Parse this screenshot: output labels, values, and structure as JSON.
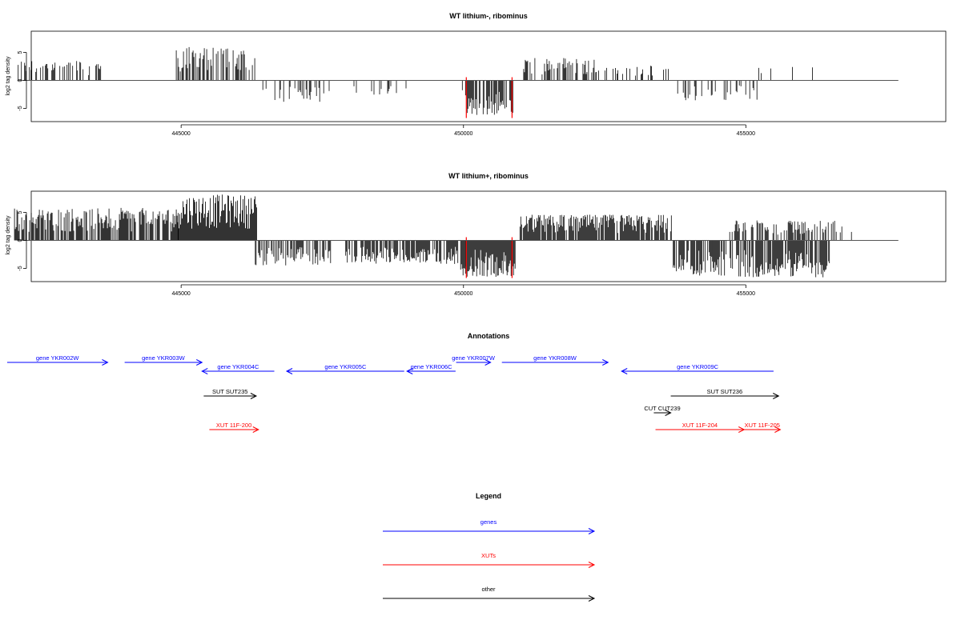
{
  "colors": {
    "genes": "#0000ff",
    "xuts": "#ff0000",
    "other": "#000000",
    "highlight": "#ff0000"
  },
  "chart_data": [
    {
      "type": "bar",
      "title": "WT lithium-, ribominus",
      "ylabel": "log2 tag density",
      "xlim": [
        442000,
        458000
      ],
      "ylim": [
        -7,
        8
      ],
      "x_ticks": [
        445000,
        450000,
        455000
      ],
      "x_tick_labels": [
        "445000",
        "450000",
        "455000"
      ],
      "y_ticks": [
        -5,
        0,
        5
      ],
      "y_tick_labels": [
        "-5",
        "0",
        "5"
      ],
      "highlight_x": [
        450050,
        450860
      ],
      "segments": [
        {
          "from": 442100,
          "to": 443600,
          "side": "up",
          "max": 3.6,
          "density": 0.4
        },
        {
          "from": 444900,
          "to": 446320,
          "side": "up",
          "max": 6.0,
          "density": 0.55
        },
        {
          "from": 446320,
          "to": 447550,
          "side": "down",
          "max": 4.0,
          "density": 0.25
        },
        {
          "from": 447550,
          "to": 449350,
          "side": "down",
          "max": 2.6,
          "density": 0.1
        },
        {
          "from": 449980,
          "to": 450880,
          "side": "down",
          "max": 6.2,
          "density": 0.75
        },
        {
          "from": 450980,
          "to": 452350,
          "side": "up",
          "max": 4.2,
          "density": 0.45
        },
        {
          "from": 452350,
          "to": 453650,
          "side": "up",
          "max": 2.8,
          "density": 0.25
        },
        {
          "from": 453750,
          "to": 455200,
          "side": "down",
          "max": 3.6,
          "density": 0.35
        },
        {
          "from": 455200,
          "to": 456300,
          "side": "up",
          "max": 3.2,
          "density": 0.08
        }
      ]
    },
    {
      "type": "bar",
      "title": "WT lithium+, ribominus",
      "ylabel": "log2 tag density",
      "xlim": [
        442000,
        458000
      ],
      "ylim": [
        -7,
        8
      ],
      "x_ticks": [
        445000,
        450000,
        455000
      ],
      "x_tick_labels": [
        "445000",
        "450000",
        "455000"
      ],
      "y_ticks": [
        -5,
        0,
        5
      ],
      "y_tick_labels": [
        "-5",
        "0",
        "5"
      ],
      "highlight_x": [
        450050,
        450860
      ],
      "segments": [
        {
          "from": 442050,
          "to": 444950,
          "side": "up",
          "max": 5.8,
          "density": 0.75
        },
        {
          "from": 444950,
          "to": 446350,
          "side": "up",
          "max": 8.2,
          "density": 1.0
        },
        {
          "from": 446300,
          "to": 447700,
          "side": "down",
          "max": 4.5,
          "density": 0.6
        },
        {
          "from": 447900,
          "to": 449900,
          "side": "down",
          "max": 4.2,
          "density": 0.7
        },
        {
          "from": 449950,
          "to": 450920,
          "side": "down",
          "max": 6.5,
          "density": 1.0
        },
        {
          "from": 451000,
          "to": 453700,
          "side": "up",
          "max": 4.6,
          "density": 0.85
        },
        {
          "from": 453700,
          "to": 456500,
          "side": "down",
          "max": 6.6,
          "density": 0.75
        },
        {
          "from": 454700,
          "to": 456700,
          "side": "up",
          "max": 3.6,
          "density": 0.5
        },
        {
          "from": 456700,
          "to": 457200,
          "side": "up",
          "max": 2.0,
          "density": 0.1
        }
      ]
    }
  ],
  "annotations": {
    "title": "Annotations",
    "items": [
      {
        "label": "gene YKR002W",
        "from": 441920,
        "to": 443700,
        "strand": "+",
        "class": "genes",
        "row": 0
      },
      {
        "label": "gene YKR003W",
        "from": 444000,
        "to": 445370,
        "strand": "+",
        "class": "genes",
        "row": 0
      },
      {
        "label": "gene YKR004C",
        "from": 445370,
        "to": 446650,
        "strand": "-",
        "class": "genes",
        "row": 1
      },
      {
        "label": "gene YKR005C",
        "from": 446870,
        "to": 448950,
        "strand": "-",
        "class": "genes",
        "row": 1
      },
      {
        "label": "gene YKR006C",
        "from": 449000,
        "to": 449860,
        "strand": "-",
        "class": "genes",
        "row": 1
      },
      {
        "label": "gene YKR007W",
        "from": 449870,
        "to": 450480,
        "strand": "+",
        "class": "genes",
        "row": 0
      },
      {
        "label": "gene YKR008W",
        "from": 450680,
        "to": 452560,
        "strand": "+",
        "class": "genes",
        "row": 0
      },
      {
        "label": "gene YKR009C",
        "from": 452800,
        "to": 455490,
        "strand": "-",
        "class": "genes",
        "row": 1
      },
      {
        "label": "SUT SUT235",
        "from": 445400,
        "to": 446330,
        "strand": "+",
        "class": "other",
        "row": 2
      },
      {
        "label": "SUT SUT236",
        "from": 453670,
        "to": 455580,
        "strand": "+",
        "class": "other",
        "row": 2
      },
      {
        "label": "CUT CUT239",
        "from": 453370,
        "to": 453670,
        "strand": "+",
        "class": "other",
        "row": 3
      },
      {
        "label": "XUT 11F-200",
        "from": 445500,
        "to": 446370,
        "strand": "+",
        "class": "xuts",
        "row": 4
      },
      {
        "label": "XUT 11F-204",
        "from": 453400,
        "to": 454970,
        "strand": "+",
        "class": "xuts",
        "row": 4
      },
      {
        "label": "XUT 11F-205",
        "from": 454970,
        "to": 455610,
        "strand": "+",
        "class": "xuts",
        "row": 4
      }
    ]
  },
  "legend": {
    "title": "Legend",
    "items": [
      {
        "label": "genes",
        "class": "genes"
      },
      {
        "label": "XUTs",
        "class": "xuts"
      },
      {
        "label": "other",
        "class": "other"
      }
    ]
  }
}
